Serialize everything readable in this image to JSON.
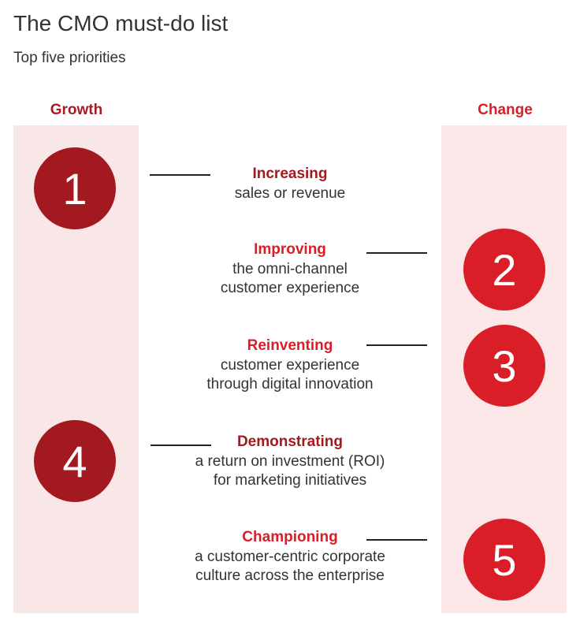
{
  "title": "The CMO must-do list",
  "subtitle": "Top five priorities",
  "columns": {
    "growth": "Growth",
    "change": "Change"
  },
  "colors": {
    "dark_red": "#a2191f",
    "bright_red": "#da1e28",
    "band": "#f9e6e7"
  },
  "priorities": [
    {
      "number": "1",
      "heading": "Increasing",
      "line1": "sales or revenue",
      "line2": ""
    },
    {
      "number": "2",
      "heading": "Improving",
      "line1": "the omni-channel",
      "line2": "customer experience"
    },
    {
      "number": "3",
      "heading": "Reinventing",
      "line1": "customer experience",
      "line2": "through digital innovation"
    },
    {
      "number": "4",
      "heading": "Demonstrating",
      "line1": "a return on investment (ROI)",
      "line2": "for marketing initiatives"
    },
    {
      "number": "5",
      "heading": "Championing",
      "line1": "a customer-centric corporate",
      "line2": "culture across the enterprise"
    }
  ]
}
